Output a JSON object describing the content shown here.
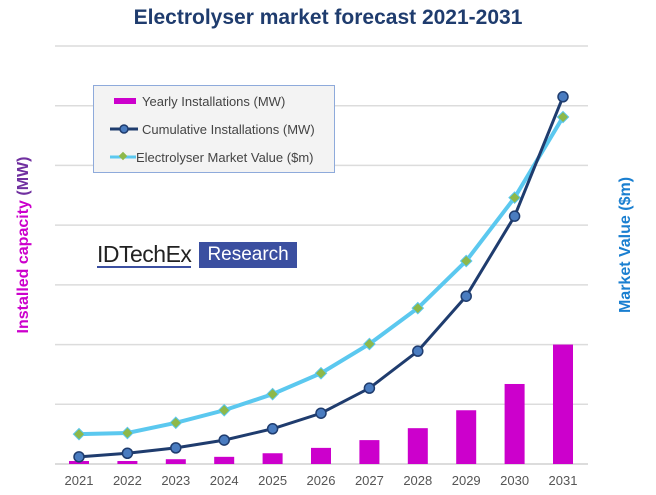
{
  "chart_data": {
    "type": "bar+line",
    "title": "Electrolyser market forecast 2021-2031",
    "ylabel_prefix": "Installed  capacity ",
    "ylabel_unit": "(MW)",
    "y2label": "Market Value ($m)",
    "categories": [
      "2021",
      "2022",
      "2023",
      "2024",
      "2025",
      "2026",
      "2027",
      "2028",
      "2029",
      "2030",
      "2031"
    ],
    "ylim": [
      0,
      7
    ],
    "grid": true,
    "legend_position": "top-left",
    "series": [
      {
        "name": "Yearly Installations (MW)",
        "type": "bar",
        "color": "#cc00cc",
        "values": [
          0.05,
          0.05,
          0.08,
          0.12,
          0.18,
          0.27,
          0.4,
          0.6,
          0.9,
          1.34,
          2.0
        ]
      },
      {
        "name": "Cumulative Installations (MW)",
        "type": "line",
        "color": "#1f3c6e",
        "marker": "circle",
        "marker_color": "#4a7cc0",
        "values": [
          0.12,
          0.18,
          0.27,
          0.4,
          0.59,
          0.85,
          1.27,
          1.89,
          2.81,
          4.15,
          6.15
        ]
      },
      {
        "name": "Electrolyser Market Value ($m)",
        "type": "line",
        "color": "#5bc8ef",
        "marker": "diamond",
        "marker_color": "#8db84a",
        "values": [
          0.5,
          0.52,
          0.69,
          0.9,
          1.17,
          1.52,
          2.01,
          2.61,
          3.4,
          4.46,
          5.81
        ]
      }
    ]
  },
  "logo": {
    "name": "IDTechEx",
    "tag": "Research"
  }
}
